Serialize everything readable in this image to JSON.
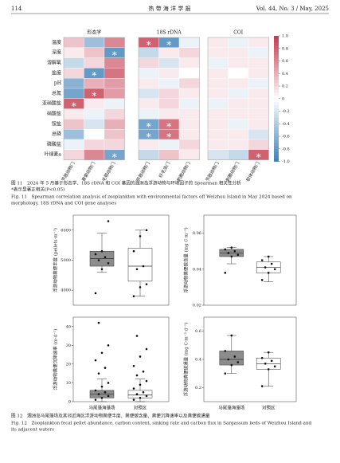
{
  "header": {
    "page": "114",
    "journal": "热 带 海 洋 学 报",
    "issue": "Vol. 44, No. 3 / May, 2025"
  },
  "figure11": {
    "caption_cn": "图 11　2024 年 5 月基于形态学、18S rDNA 和 COI 基因的涠洲岛浮游动物与环境因子的 Spearman 相关性分析",
    "note": "*表示显著正相关(P<0.05)",
    "caption_en": [
      "Fig. 11　Spearman correlation analysis of zooplankton with environmental factors off Weizhou Island in May 2024 based on",
      "morphology, 18S rDNA and COI gene analyses"
    ]
  },
  "figure12": {
    "caption_cn": "图 12　涠洲岛马尾藻场及其邻近海区浮游动物粪便丰度、粪便碳含量、粪便沉降速率以及粪便碳通量",
    "caption_en": [
      "Fig. 12　Zooplankton fecal pellet abundance, carbon content, sinking rate and carbon flux in Sargassum beds of Weizhou Island and",
      "its adjacent waters"
    ]
  },
  "chart_data": [
    {
      "type": "heatmap",
      "rows": [
        "温度",
        "深度",
        "溶解氧",
        "盐度",
        "pH",
        "总氮",
        "亚硝酸盐",
        "硝酸盐",
        "铵盐",
        "总磷",
        "磷酸盐",
        "叶绿素a"
      ],
      "colors": [
        "#3b7fb6",
        "#ffffff",
        "#c3394e"
      ],
      "zlim": [
        -1,
        1
      ],
      "zticks": [
        {
          "value": 1,
          "label": "1.0"
        },
        0.8,
        0.6,
        0.4,
        0.2,
        0,
        -0.2,
        -0.4,
        -0.6,
        -0.8,
        {
          "value": -1,
          "label": "-1.0"
        }
      ],
      "panels": [
        {
          "title": "形态学",
          "columns": [
            "节肢动物门",
            "脊索动物门",
            "毛颚动物门"
          ],
          "values": [
            [
              0.3,
              -0.5,
              0.6
            ],
            [
              0.1,
              0.3,
              -0.8
            ],
            [
              -0.3,
              0.2,
              0.6
            ],
            [
              0.2,
              -0.8,
              0.7
            ],
            [
              -0.6,
              0.4,
              0.5
            ],
            [
              -0.7,
              0.8,
              0.5
            ],
            [
              0.8,
              0.1,
              -0.1
            ],
            [
              0.1,
              -0.1,
              0.2
            ],
            [
              0.3,
              -0.2,
              0.4
            ],
            [
              -0.5,
              0,
              0.3
            ],
            [
              -0.1,
              0.2,
              0.2
            ],
            [
              0.2,
              0.6,
              -0.7
            ]
          ]
        },
        {
          "title": "18S rDNA",
          "columns": [
            "节肢动物门",
            "纤毛虫门",
            "刺胞动物门"
          ],
          "values": [
            [
              0.8,
              -0.8,
              -0.1
            ],
            [
              -0.3,
              0.1,
              0.2
            ],
            [
              0.2,
              -0.2,
              0.1
            ],
            [
              -0.1,
              0.1,
              0
            ],
            [
              0.1,
              -0.1,
              0.2
            ],
            [
              -0.2,
              0.2,
              0.1
            ],
            [
              0.1,
              0.2,
              -0.1
            ],
            [
              -0.1,
              0.1,
              0.1
            ],
            [
              -0.7,
              0.7,
              0.1
            ],
            [
              -0.7,
              0.7,
              0.1
            ],
            [
              0.1,
              -0.1,
              0.2
            ],
            [
              -0.3,
              0.3,
              0.1
            ]
          ]
        },
        {
          "title": "COI",
          "columns": [
            "节肢动物门",
            "刺胞动物门",
            "软体动物门"
          ],
          "values": [
            [
              0.1,
              -0.1,
              0.1
            ],
            [
              0.1,
              0.1,
              -0.1
            ],
            [
              -0.1,
              0.1,
              0.1
            ],
            [
              0.1,
              0,
              0.1
            ],
            [
              0.1,
              0.1,
              -0.1
            ],
            [
              0.1,
              -0.1,
              0.1
            ],
            [
              -0.1,
              0.1,
              0.1
            ],
            [
              0.1,
              0.1,
              0.1
            ],
            [
              0.1,
              -0.1,
              0.1
            ],
            [
              0.1,
              0.1,
              -0.2
            ],
            [
              0.1,
              0.1,
              0.2
            ],
            [
              -0.2,
              -0.3,
              0.8
            ]
          ]
        }
      ],
      "annotations": [
        {
          "panel": 0,
          "row": 1,
          "col": 2,
          "text": "*"
        },
        {
          "panel": 0,
          "row": 3,
          "col": 1,
          "text": "*"
        },
        {
          "panel": 0,
          "row": 5,
          "col": 1,
          "text": "*"
        },
        {
          "panel": 0,
          "row": 6,
          "col": 0,
          "text": "*"
        },
        {
          "panel": 0,
          "row": 11,
          "col": 2,
          "text": "*"
        },
        {
          "panel": 1,
          "row": 0,
          "col": 0,
          "text": "*"
        },
        {
          "panel": 1,
          "row": 0,
          "col": 1,
          "text": "*"
        },
        {
          "panel": 1,
          "row": 8,
          "col": 0,
          "text": "*"
        },
        {
          "panel": 1,
          "row": 8,
          "col": 1,
          "text": "*"
        },
        {
          "panel": 1,
          "row": 9,
          "col": 0,
          "text": "*"
        },
        {
          "panel": 1,
          "row": 9,
          "col": 1,
          "text": "*"
        },
        {
          "panel": 2,
          "row": 11,
          "col": 2,
          "text": "*"
        }
      ]
    },
    {
      "type": "box",
      "ylabel": "浮游动物粪便丰度 (pellets·m⁻³)",
      "categories": [
        null,
        null
      ],
      "ylim": [
        3500,
        6500
      ],
      "yticks": [
        4000,
        5000,
        6000
      ],
      "boxes": [
        {
          "color": "#8c8c8c",
          "min": 4600,
          "q1": 4800,
          "median": 5050,
          "q3": 5300,
          "max": 5900,
          "points": [
            3900,
            4700,
            4900,
            5000,
            5100,
            5200,
            5300,
            6300
          ]
        },
        {
          "color": "#ffffff",
          "min": 3800,
          "q1": 4300,
          "median": 4800,
          "q3": 5400,
          "max": 6000,
          "points": [
            3800,
            4100,
            4200,
            4700,
            4800,
            5300,
            5800,
            6000
          ]
        }
      ]
    },
    {
      "type": "box",
      "ylabel": "浮游动物粪便碳含量 (mg C·m⁻³)",
      "categories": [
        null,
        null
      ],
      "ylim": [
        0.02,
        0.07
      ],
      "yticks": [
        0.02,
        0.04,
        0.06
      ],
      "boxes": [
        {
          "color": "#8c8c8c",
          "min": 0.043,
          "q1": 0.047,
          "median": 0.049,
          "q3": 0.051,
          "max": 0.052,
          "points": [
            0.038,
            0.047,
            0.048,
            0.049,
            0.05,
            0.051,
            0.052
          ]
        },
        {
          "color": "#ffffff",
          "min": 0.033,
          "q1": 0.038,
          "median": 0.041,
          "q3": 0.044,
          "max": 0.047,
          "points": [
            0.034,
            0.038,
            0.04,
            0.041,
            0.043,
            0.045,
            0.047
          ]
        }
      ]
    },
    {
      "type": "box",
      "ylabel": "浮游动物粪便沉降速率 (m·d⁻¹)",
      "categories": [
        "马尾藻海藻场",
        "对照区"
      ],
      "ylim": [
        0,
        45
      ],
      "yticks": [
        0,
        10,
        20,
        30,
        40
      ],
      "boxes": [
        {
          "color": "#8c8c8c",
          "min": 0,
          "q1": 2,
          "median": 4,
          "q3": 6,
          "max": 12,
          "points": [
            1,
            2,
            3,
            4,
            5,
            6,
            8,
            10,
            15,
            18,
            22,
            26,
            30,
            42
          ]
        },
        {
          "color": "#ffffff",
          "min": 0,
          "q1": 2,
          "median": 3.5,
          "q3": 6,
          "max": 12,
          "points": [
            1,
            2,
            3,
            4,
            5,
            7,
            9,
            11,
            14,
            16,
            19,
            24,
            28,
            35
          ]
        }
      ]
    },
    {
      "type": "box",
      "ylabel": "浮游动物粪便碳通量 (mg C·m⁻²·d⁻¹)",
      "categories": [
        "马尾藻海藻场",
        "对照区"
      ],
      "ylim": [
        0.1,
        0.7
      ],
      "yticks": [
        0.2,
        0.4,
        0.6
      ],
      "boxes": [
        {
          "color": "#8c8c8c",
          "min": 0.3,
          "q1": 0.36,
          "median": 0.4,
          "q3": 0.46,
          "max": 0.57,
          "points": [
            0.3,
            0.36,
            0.38,
            0.4,
            0.42,
            0.46,
            0.57
          ]
        },
        {
          "color": "#ffffff",
          "min": 0.21,
          "q1": 0.33,
          "median": 0.37,
          "q3": 0.41,
          "max": 0.45,
          "points": [
            0.21,
            0.33,
            0.35,
            0.37,
            0.39,
            0.41,
            0.45
          ]
        }
      ]
    }
  ]
}
